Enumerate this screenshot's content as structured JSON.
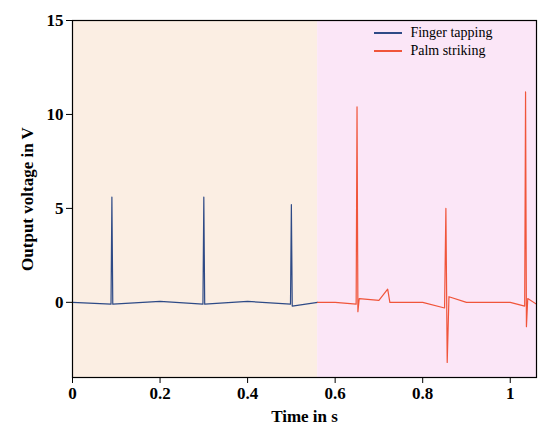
{
  "chart_data": {
    "type": "line",
    "xlabel": "Time in s",
    "ylabel": "Output voltage in V",
    "xlim": [
      0,
      1.06
    ],
    "xticks": [
      0,
      0.2,
      0.4,
      0.6,
      0.8,
      1
    ],
    "ylim": [
      -4,
      15
    ],
    "yticks": [
      0,
      5,
      10,
      15
    ],
    "grid": false,
    "legend": "upper right",
    "series": [
      {
        "name": "Finger tapping",
        "color": "#2e4a86",
        "x": [
          0,
          0.088,
          0.09,
          0.092,
          0.2,
          0.298,
          0.3,
          0.302,
          0.4,
          0.498,
          0.5,
          0.502,
          0.56
        ],
        "values": [
          0,
          -0.1,
          5.6,
          -0.1,
          0.05,
          -0.1,
          5.6,
          -0.1,
          0.05,
          -0.1,
          5.2,
          -0.2,
          0
        ]
      },
      {
        "name": "Palm striking",
        "color": "#f0553a",
        "x": [
          0.56,
          0.6,
          0.648,
          0.65,
          0.652,
          0.655,
          0.7,
          0.72,
          0.725,
          0.8,
          0.85,
          0.853,
          0.856,
          0.86,
          0.9,
          1.0,
          1.033,
          1.035,
          1.037,
          1.04,
          1.06
        ],
        "values": [
          0,
          0,
          -0.1,
          10.4,
          -0.5,
          0.2,
          0.1,
          0.7,
          0,
          0,
          -0.3,
          5.0,
          -3.2,
          0.3,
          0,
          0,
          -0.2,
          11.2,
          -1.3,
          0.2,
          -0.1
        ]
      }
    ]
  }
}
